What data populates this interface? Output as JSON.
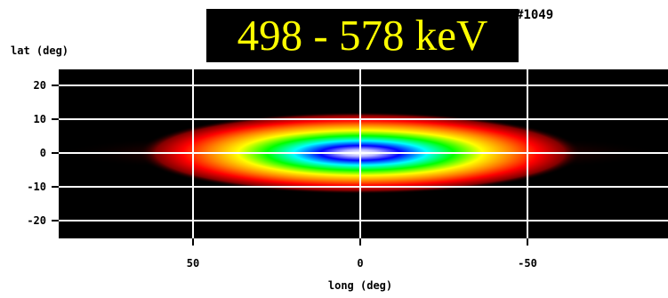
{
  "header": {
    "energy_band": "498 - 578 keV",
    "map_id": "#1049"
  },
  "chart_data": {
    "type": "heatmap",
    "title": "498 - 578 keV",
    "xlabel": "long (deg)",
    "ylabel": "lat (deg)",
    "xlim": [
      90,
      -90
    ],
    "ylim": [
      -25,
      25
    ],
    "x_ticks": [
      -50,
      0,
      50
    ],
    "y_ticks": [
      20,
      10,
      0,
      -10,
      -20
    ],
    "x_tick_labels": [
      "-50",
      "0",
      "50"
    ],
    "y_tick_labels": [
      "20",
      "10",
      "0",
      "-10",
      "-20"
    ],
    "grid": true,
    "colormap": [
      "#000000",
      "#800000",
      "#ff0000",
      "#ff8000",
      "#ffff00",
      "#00ff00",
      "#00ffff",
      "#0000ff",
      "#ffffff"
    ],
    "emission": {
      "center_longitude": 0,
      "center_latitude": 0,
      "peak_color": "#ffffff",
      "description_fwhm_longitude_deg": 40,
      "description_fwhm_latitude_deg": 7
    }
  },
  "colors": {
    "title_text": "#ffff00",
    "title_background": "#000000",
    "grid": "#ffffff",
    "plot_background": "#000000"
  }
}
